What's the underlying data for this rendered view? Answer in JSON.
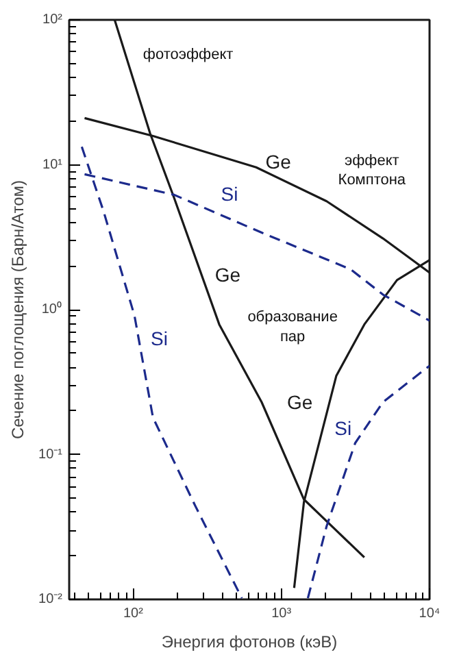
{
  "chart_data": {
    "type": "line",
    "xlabel": "Энергия фотонов (кэВ)",
    "ylabel": "Сечение поглощения (Барн/Атом)",
    "log": "xy",
    "grid": false,
    "marker": "none",
    "xlim": [
      37,
      10000
    ],
    "ylim": [
      0.01,
      100
    ],
    "xticks": [
      {
        "value": 100,
        "label": "10²"
      },
      {
        "value": 1000,
        "label": "10³"
      },
      {
        "value": 10000,
        "label": "10⁴"
      }
    ],
    "yticks": [
      {
        "value": 0.01,
        "label": "10⁻²"
      },
      {
        "value": 0.1,
        "label": "10⁻¹"
      },
      {
        "value": 1,
        "label": "10⁰"
      },
      {
        "value": 10,
        "label": "10¹"
      },
      {
        "value": 100,
        "label": "10²"
      }
    ],
    "series": [
      {
        "name": "Ge",
        "color": "#1a1a1a",
        "line_style": "solid",
        "x": [
          75,
          130,
          189,
          381,
          736,
          1420,
          3630
        ],
        "values": [
          100,
          16.5,
          5.9,
          0.79,
          0.23,
          0.049,
          0.0195
        ]
      },
      {
        "name": "Ge",
        "color": "#1a1a1a",
        "line_style": "solid",
        "x": [
          47,
          136,
          676,
          2020,
          4850,
          10000
        ],
        "values": [
          21,
          15.8,
          9.6,
          5.6,
          3.1,
          1.8
        ]
      },
      {
        "name": "Ge",
        "color": "#1a1a1a",
        "line_style": "solid",
        "x": [
          1220,
          1420,
          2350,
          3630,
          6030,
          10000
        ],
        "values": [
          0.012,
          0.047,
          0.35,
          0.79,
          1.6,
          2.2
        ]
      },
      {
        "name": "Si",
        "color": "#1c2a8c",
        "line_style": "dashed",
        "x": [
          45,
          63,
          102,
          136,
          263,
          541
        ],
        "values": [
          13.3,
          4.8,
          0.91,
          0.18,
          0.044,
          0.0102
        ]
      },
      {
        "name": "Si",
        "color": "#1c2a8c",
        "line_style": "dashed",
        "x": [
          47,
          189,
          736,
          2930,
          4850,
          10000
        ],
        "values": [
          8.6,
          6.2,
          3.4,
          1.9,
          1.27,
          0.84
        ]
      },
      {
        "name": "Si",
        "color": "#1c2a8c",
        "line_style": "dashed",
        "x": [
          1510,
          2020,
          3150,
          4850,
          10000
        ],
        "values": [
          0.0102,
          0.032,
          0.12,
          0.23,
          0.41
        ]
      }
    ],
    "annotations": [
      "фотоэффект",
      "эффект\nКомптона",
      "образование\nпар"
    ]
  }
}
